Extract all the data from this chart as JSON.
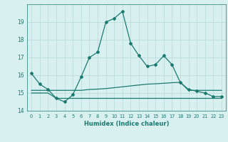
{
  "xlabel": "Humidex (Indice chaleur)",
  "x": [
    0,
    1,
    2,
    3,
    4,
    5,
    6,
    7,
    8,
    9,
    10,
    11,
    12,
    13,
    14,
    15,
    16,
    17,
    18,
    19,
    20,
    21,
    22,
    23
  ],
  "main_y": [
    16.1,
    15.5,
    15.2,
    14.7,
    14.5,
    14.9,
    15.9,
    17.0,
    17.3,
    19.0,
    19.2,
    19.6,
    17.8,
    17.1,
    16.5,
    16.6,
    17.1,
    16.6,
    15.6,
    15.2,
    15.1,
    15.0,
    14.8,
    14.8
  ],
  "upper_y": [
    15.15,
    15.15,
    15.15,
    15.15,
    15.15,
    15.15,
    15.15,
    15.2,
    15.22,
    15.25,
    15.3,
    15.35,
    15.4,
    15.45,
    15.5,
    15.52,
    15.55,
    15.58,
    15.6,
    15.15,
    15.15,
    15.15,
    15.15,
    15.15
  ],
  "lower_y": [
    15.0,
    15.0,
    15.0,
    14.7,
    14.7,
    14.7,
    14.7,
    14.7,
    14.7,
    14.7,
    14.7,
    14.7,
    14.7,
    14.7,
    14.7,
    14.7,
    14.7,
    14.7,
    14.7,
    14.7,
    14.7,
    14.7,
    14.7,
    14.7
  ],
  "ylim": [
    14.0,
    20.0
  ],
  "yticks": [
    14,
    15,
    16,
    17,
    18,
    19
  ],
  "xlim": [
    -0.5,
    23.5
  ],
  "line_color": "#1a7a6e",
  "bg_color": "#d8f0f0",
  "grid_color": "#b8d8d8"
}
